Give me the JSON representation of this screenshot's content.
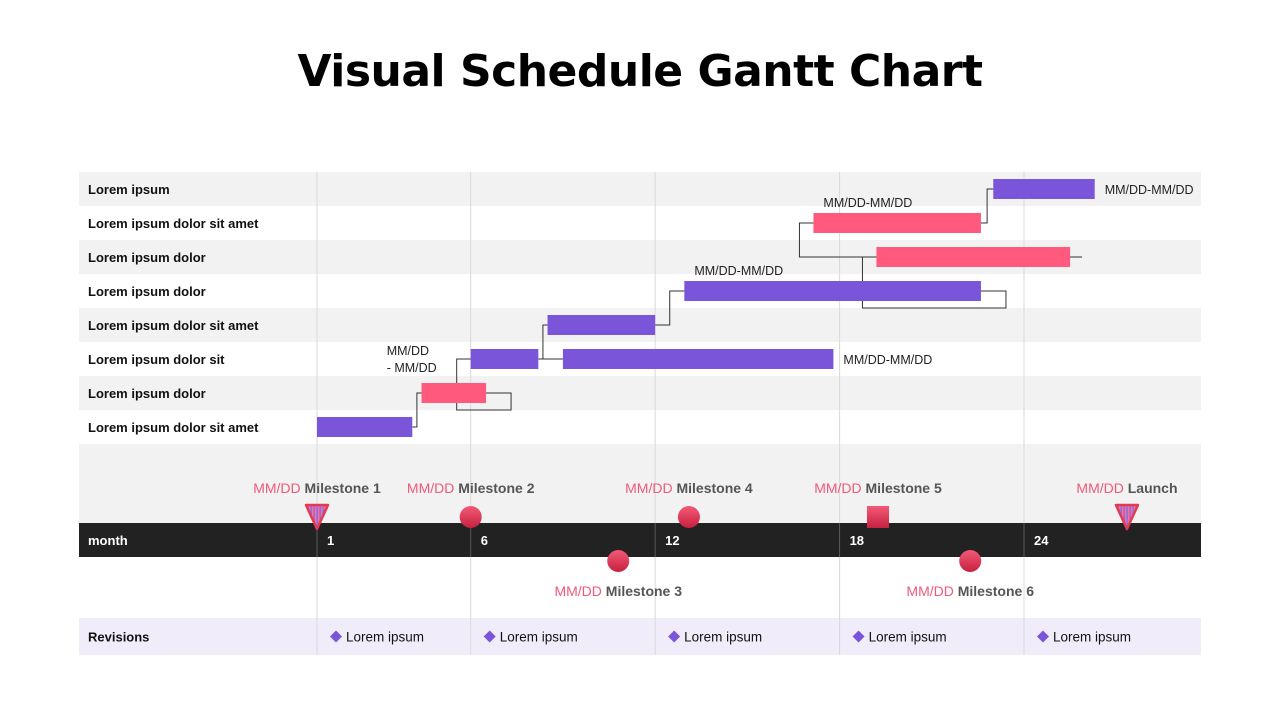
{
  "title": "Visual Schedule Gantt Chart",
  "colors": {
    "purple": "#7b55d9",
    "pink": "#ff5a7d",
    "row_shade": "#f2f2f2",
    "axis_band": "#222222",
    "milestone_red": "#e23a55",
    "milestone_date": "#ef5a7a",
    "revisions_band": "#f0ecfa",
    "diamond": "#7b55d9",
    "gridline": "#d9d9d9",
    "connector": "#333333"
  },
  "chart_data": {
    "type": "gantt",
    "title": "Visual Schedule Gantt Chart",
    "x_axis": {
      "label": "month",
      "ticks": [
        1,
        6,
        12,
        18,
        24
      ],
      "range": [
        1,
        30
      ]
    },
    "categories": [
      "Lorem ipsum",
      "Lorem ipsum dolor sit amet",
      "Lorem ipsum dolor",
      "Lorem ipsum dolor",
      "Lorem ipsum dolor sit amet",
      "Lorem ipsum dolor sit",
      "Lorem ipsum dolor",
      "Lorem ipsum dolor sit amet"
    ],
    "tasks": [
      {
        "row": 7,
        "start": 1.0,
        "end": 4.1,
        "color": "purple"
      },
      {
        "row": 6,
        "start": 4.4,
        "end": 6.5,
        "color": "pink"
      },
      {
        "row": 5,
        "start": 6.0,
        "end": 8.2,
        "color": "purple",
        "label": "MM/DD\n- MM/DD",
        "label_pos": "left"
      },
      {
        "row": 5,
        "start": 9.0,
        "end": 17.8,
        "color": "purple",
        "label": "MM/DD-MM/DD",
        "label_pos": "right"
      },
      {
        "row": 4,
        "start": 8.5,
        "end": 12.0,
        "color": "purple"
      },
      {
        "row": 3,
        "start": 12.95,
        "end": 22.6,
        "color": "purple",
        "label": "MM/DD-MM/DD",
        "label_pos": "above"
      },
      {
        "row": 2,
        "start": 19.2,
        "end": 25.5,
        "color": "pink"
      },
      {
        "row": 1,
        "start": 17.15,
        "end": 22.6,
        "color": "pink",
        "label": "MM/DD-MM/DD",
        "label_pos": "above"
      },
      {
        "row": 0,
        "start": 23.0,
        "end": 26.3,
        "color": "purple",
        "label": "MM/DD-MM/DD",
        "label_pos": "right"
      }
    ],
    "dependencies": [
      {
        "from": 0,
        "to": 1
      },
      {
        "from": 1,
        "to": 2
      },
      {
        "from": 2,
        "to": 4
      },
      {
        "from": 2,
        "to": 3
      },
      {
        "from": 4,
        "to": 5
      },
      {
        "from": 5,
        "to": 6
      },
      {
        "from": 6,
        "to": 7
      },
      {
        "from": 7,
        "to": 8
      }
    ],
    "milestones": [
      {
        "x": 1.0,
        "date": "MM/DD",
        "name": "Milestone 1",
        "shape": "triangle",
        "side": "above"
      },
      {
        "x": 6.0,
        "date": "MM/DD",
        "name": "Milestone 2",
        "shape": "circle",
        "side": "above"
      },
      {
        "x": 10.8,
        "date": "MM/DD",
        "name": "Milestone 3",
        "shape": "circle",
        "side": "below"
      },
      {
        "x": 13.1,
        "date": "MM/DD",
        "name": "Milestone 4",
        "shape": "circle",
        "side": "above"
      },
      {
        "x": 19.25,
        "date": "MM/DD",
        "name": "Milestone 5",
        "shape": "square",
        "side": "above"
      },
      {
        "x": 22.25,
        "date": "MM/DD",
        "name": "Milestone 6",
        "shape": "circle",
        "side": "below"
      },
      {
        "x": 27.35,
        "date": "MM/DD",
        "name": "Launch",
        "shape": "triangle",
        "side": "above"
      }
    ],
    "revisions": {
      "label": "Revisions",
      "items": [
        {
          "x": 1,
          "text": "Lorem ipsum"
        },
        {
          "x": 6,
          "text": "Lorem ipsum"
        },
        {
          "x": 12,
          "text": "Lorem ipsum"
        },
        {
          "x": 18,
          "text": "Lorem ipsum"
        },
        {
          "x": 24,
          "text": "Lorem ipsum"
        }
      ]
    }
  }
}
